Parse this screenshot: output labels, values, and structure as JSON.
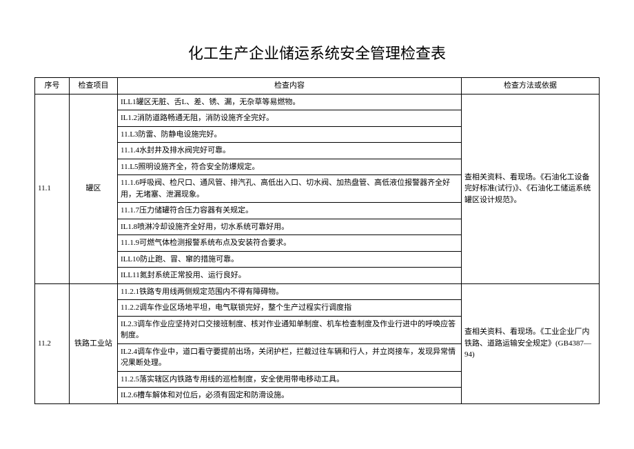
{
  "title": "化工生产企业储运系统安全管理检查表",
  "headers": {
    "seq": "序号",
    "item": "检查项目",
    "content": "检查内容",
    "method": "检查方法或依据"
  },
  "sections": [
    {
      "seq": "11.1",
      "item": "罐区",
      "method": "查相关资料、看现场。《石油化工设备完好标准(试行)》、《石油化工储运系统罐区设计规范》。",
      "contents": [
        "ILL1罐区无脏、舌L、差、锈、漏，无杂草等易燃物。",
        "IL1.2消防道路畅通无阻，消防设施齐全完好。",
        "11.L3防雷、防静电设施完好。",
        "11.1.4水封井及排水阀完好可靠。",
        "11.L5照明设施齐全，符合安全防爆规定。",
        "11.1.6呼吸阀、检尺口、通风管、排汽孔、高低出入口、切水阀、加热盘管、高低液位报警器齐全好用，无堵塞、泄漏现象。",
        "11.1.7压力储罐符合压力容器有关规定。",
        "IL1.8喷淋冷却设施齐全好用，切水系统可靠好用。",
        "11.1.9可燃气体检测报警系统布点及安装符合要求。",
        "ILL10防止跑、冒、窜的措施可靠。",
        "ILL11氮封系统正常投用、运行良好。"
      ]
    },
    {
      "seq": "11.2",
      "item": "铁路工业站",
      "method": "查相关资料、看现场。《工业企业厂内铁路、道路运输安全规定》(GB4387—94)",
      "contents": [
        "11.2.1铁路专用线两侧规定范围内不得有障碍物。",
        "11.2.2调车作业区场地平坦，电气联锁完好，整个生产过程实行调度指",
        "IL2.3调车作业应坚持对口交接班制度、核对作业通知单制度、机车检查制度及作业行进中的呼唤应答制度。",
        "IL2.4调车作业中，道口看守要提前出场，关闭护栏，拦截过往车辆和行人，并立岗接车，发现异常情况果断处理。",
        "11.2.5落实辖区内铁路专用线的巡检制度，安全使用带电移动工具。",
        "IL2.6槽车解体和对位后，必须有固定和防滑设施。"
      ]
    }
  ],
  "style": {
    "background_color": "#ffffff",
    "border_color": "#000000",
    "text_color": "#000000",
    "title_fontsize": 22,
    "cell_fontsize": 11,
    "col_widths": {
      "seq": 50,
      "item": 70,
      "method": 200
    }
  }
}
